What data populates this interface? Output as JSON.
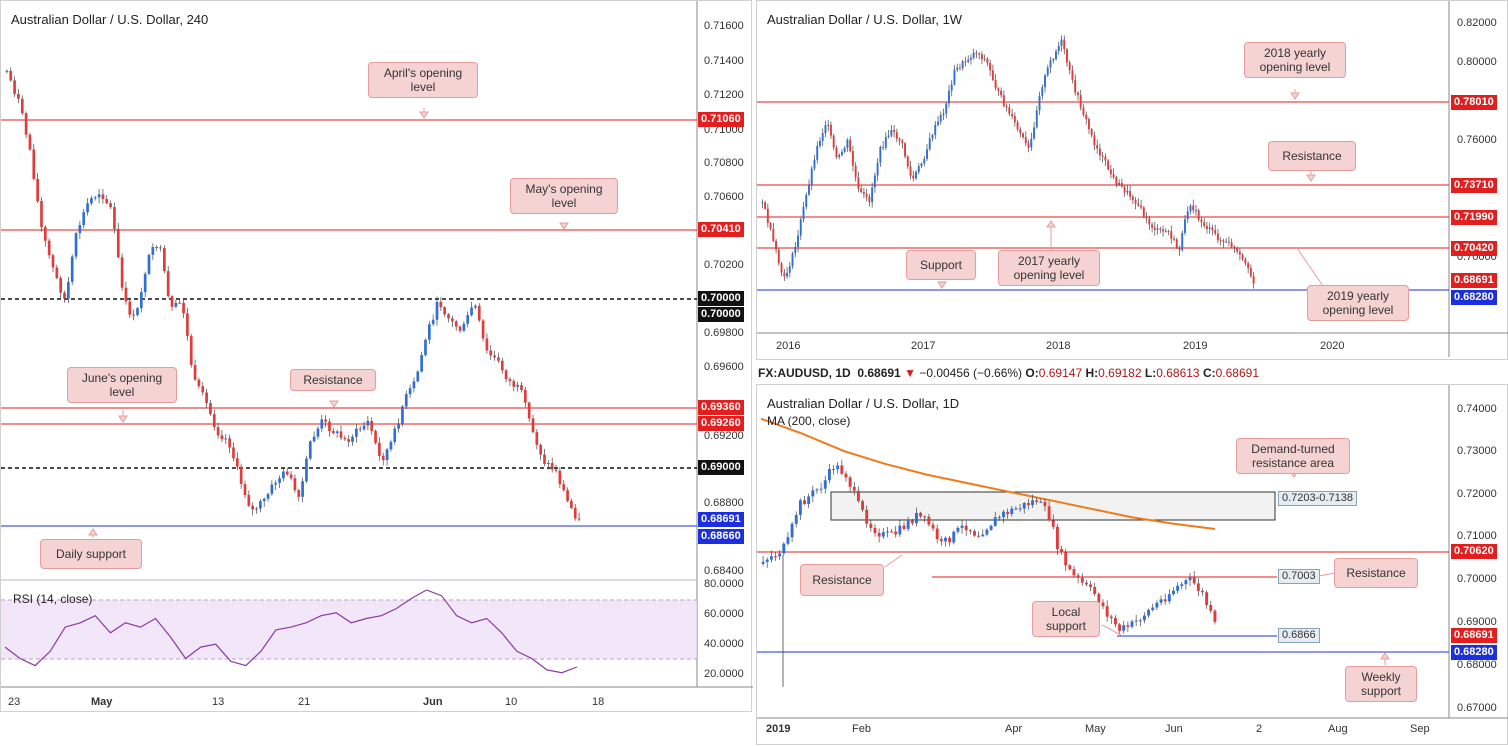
{
  "charts": {
    "h4": {
      "title": "Australian Dollar / U.S. Dollar, 240",
      "yticks": [
        "0.71600",
        "0.71400",
        "0.71200",
        "0.71000",
        "0.70800",
        "0.70600",
        "0.70200",
        "0.69800",
        "0.69600",
        "0.69200",
        "0.68800",
        "0.68400"
      ],
      "xticks": [
        "23",
        "May",
        "13",
        "21",
        "Jun",
        "10",
        "18"
      ],
      "tags": [
        {
          "label": "0.71060",
          "color": "#e21e1e"
        },
        {
          "label": "0.70410",
          "color": "#e21e1e"
        },
        {
          "label": "0.70000",
          "color": "#111111"
        },
        {
          "label": "0.70000",
          "color": "#111111"
        },
        {
          "label": "0.69360",
          "color": "#e21e1e"
        },
        {
          "label": "0.69260",
          "color": "#e21e1e"
        },
        {
          "label": "0.69000",
          "color": "#111111"
        },
        {
          "label": "0.68691",
          "color": "#1c2fe0"
        },
        {
          "label": "0.68660",
          "color": "#1c2fe0"
        }
      ],
      "notes": [
        "April's opening level",
        "May's opening level",
        "June's opening level",
        "Resistance",
        "Daily support"
      ],
      "rsi": {
        "title": "RSI (14, close)",
        "yticks": [
          "80.0000",
          "60.0000",
          "40.0000",
          "20.0000"
        ]
      }
    },
    "weekly": {
      "title": "Australian Dollar / U.S. Dollar, 1W",
      "yticks": [
        "0.82000",
        "0.80000",
        "0.76000",
        "0.70000"
      ],
      "xticks": [
        "2016",
        "2017",
        "2018",
        "2019",
        "2020"
      ],
      "tags": [
        {
          "label": "0.78010",
          "color": "#e21e1e"
        },
        {
          "label": "0.73710",
          "color": "#e21e1e"
        },
        {
          "label": "0.71990",
          "color": "#e21e1e"
        },
        {
          "label": "0.70420",
          "color": "#e21e1e"
        },
        {
          "label": "0.68691",
          "color": "#e21e1e"
        },
        {
          "label": "0.68280",
          "color": "#1c2fe0"
        }
      ],
      "notes": [
        "2018 yearly opening level",
        "Resistance",
        "Support",
        "2017 yearly opening level",
        "2019 yearly opening level"
      ]
    },
    "daily": {
      "header": {
        "symbol": "FX:AUDUSD, 1D",
        "close": "0.68691",
        "change": "−0.00456 (−0.66%)",
        "o_label": "O:",
        "o": "0.69147",
        "h_label": "H:",
        "h": "0.69182",
        "l_label": "L:",
        "l": "0.68613",
        "c_label": "C:",
        "c": "0.68691"
      },
      "title": "Australian Dollar / U.S. Dollar, 1D",
      "ma_label": "MA (200, close)",
      "yticks": [
        "0.74000",
        "0.73000",
        "0.72000",
        "0.71000",
        "0.70000",
        "0.69000",
        "0.68000",
        "0.67000"
      ],
      "xticks": [
        "2019",
        "Feb",
        "Apr",
        "May",
        "Jun",
        "2",
        "Aug",
        "Sep"
      ],
      "tags": [
        {
          "label": "0.70620",
          "color": "#e21e1e"
        },
        {
          "label": "0.68691",
          "color": "#e21e1e"
        },
        {
          "label": "0.68280",
          "color": "#1c2fe0"
        }
      ],
      "box_labels": [
        "0.7203-0.7138",
        "0.7003",
        "0.6866"
      ],
      "notes": [
        "Demand-turned resistance area",
        "Resistance",
        "Resistance",
        "Local support",
        "Weekly support"
      ]
    }
  },
  "chart_data": [
    {
      "type": "line",
      "title": "Australian Dollar / U.S. Dollar, 240",
      "series": [
        {
          "name": "RSI (14, close)",
          "values": [
            38,
            30,
            25,
            35,
            52,
            55,
            60,
            48,
            55,
            52,
            58,
            45,
            30,
            38,
            40,
            28,
            25,
            35,
            50,
            52,
            55,
            60,
            62,
            55,
            58,
            60,
            65,
            72,
            78,
            74,
            60,
            55,
            58,
            48,
            35,
            30,
            22,
            20,
            24
          ]
        }
      ],
      "levels": [
        0.7106,
        0.7041,
        0.7,
        0.6936,
        0.6926,
        0.69,
        0.68691,
        0.6866
      ]
    },
    {
      "type": "line",
      "title": "Australian Dollar / U.S. Dollar, 1W",
      "levels": [
        0.7801,
        0.7371,
        0.7199,
        0.7042,
        0.68691,
        0.6828
      ]
    },
    {
      "type": "line",
      "title": "Australian Dollar / U.S. Dollar, 1D",
      "series": [
        {
          "name": "MA (200, close)",
          "values": [
            0.7375,
            0.734,
            0.73,
            0.727,
            0.7245,
            0.7225,
            0.7205,
            0.7185,
            0.7165,
            0.7145,
            0.713,
            0.7118
          ]
        }
      ],
      "levels": [
        0.7062,
        0.7003,
        0.6866,
        0.68691,
        0.6828
      ],
      "zones": [
        [
          0.7138,
          0.7203
        ]
      ]
    }
  ]
}
